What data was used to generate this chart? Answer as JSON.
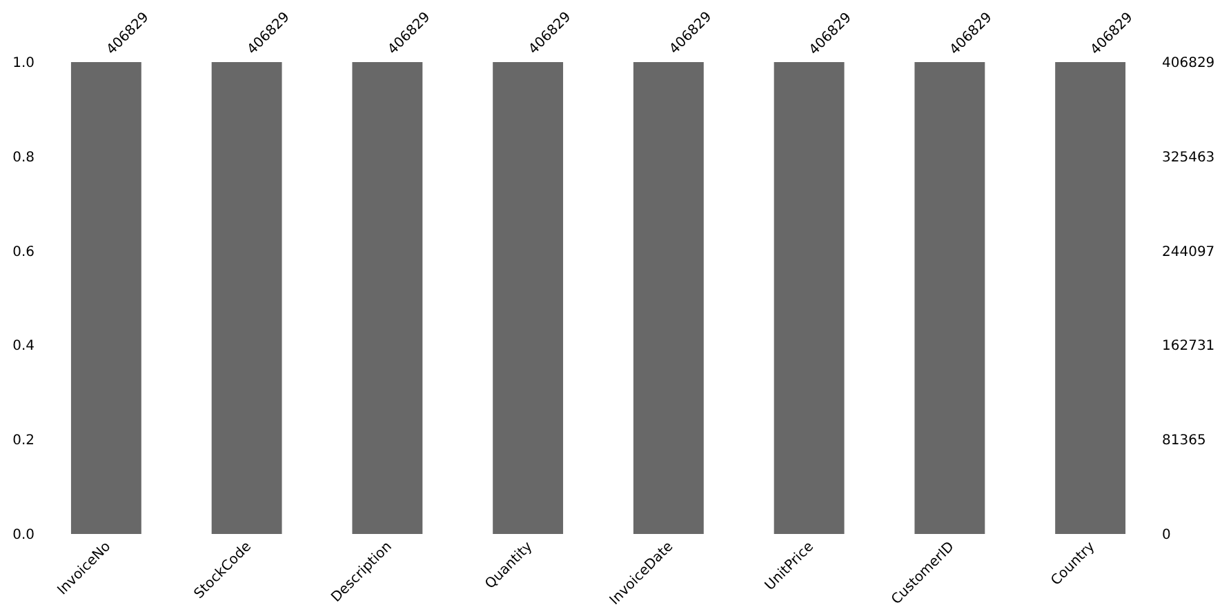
{
  "chart_data": {
    "type": "bar",
    "categories": [
      "InvoiceNo",
      "StockCode",
      "Description",
      "Quantity",
      "InvoiceDate",
      "UnitPrice",
      "CustomerID",
      "Country"
    ],
    "series": [
      {
        "color": "#686868",
        "axis": "y2",
        "values": [
          406829,
          406829,
          406829,
          406829,
          406829,
          406829,
          406829,
          406829
        ]
      }
    ],
    "data_labels": true,
    "ylim": [
      0,
      1
    ],
    "yticks": [
      {
        "value": 0,
        "label": "0.0"
      },
      {
        "value": 0.2,
        "label": "0.2"
      },
      {
        "value": 0.4,
        "label": "0.4"
      },
      {
        "value": 0.6,
        "label": "0.6"
      },
      {
        "value": 0.8,
        "label": "0.8"
      },
      {
        "value": 1,
        "label": "1.0"
      }
    ],
    "y2lim": [
      0,
      406829
    ],
    "y2ticks": [
      0,
      81365,
      162731,
      244097,
      325463,
      406829
    ],
    "grid": false,
    "legend": false
  }
}
